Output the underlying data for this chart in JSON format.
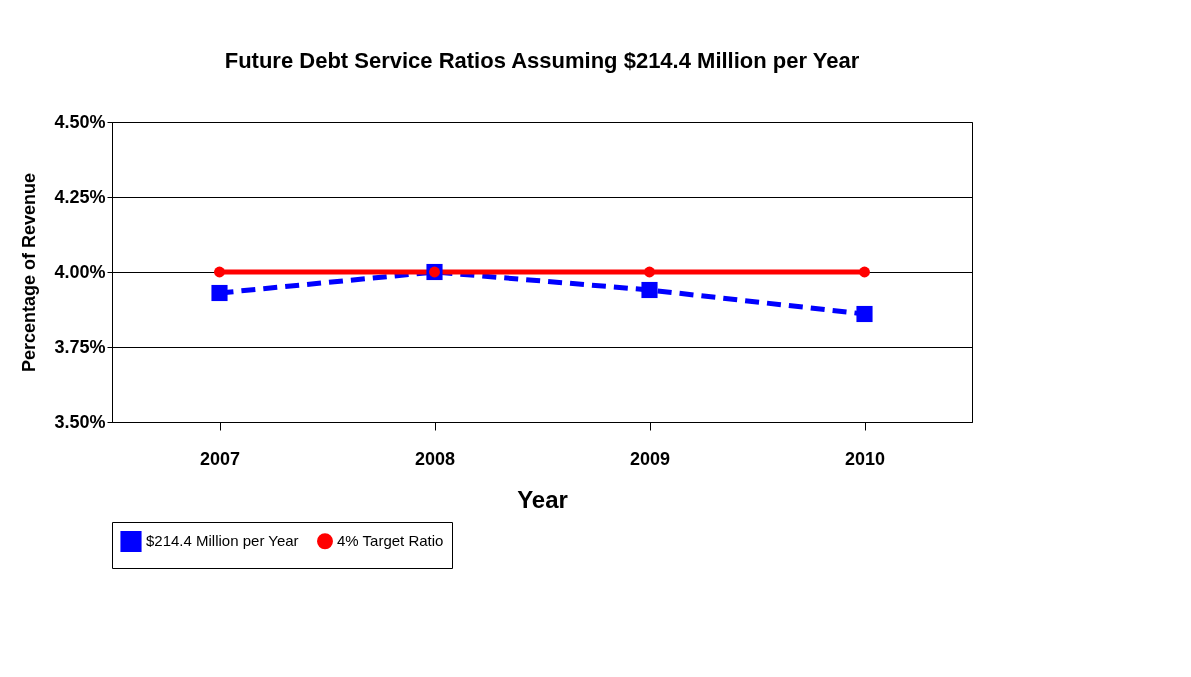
{
  "chart_data": {
    "type": "line",
    "title": "Future Debt Service Ratios Assuming $214.4 Million per Year",
    "xlabel": "Year",
    "ylabel": "Percentage of Revenue",
    "categories": [
      "2007",
      "2008",
      "2009",
      "2010"
    ],
    "series": [
      {
        "name": "$214.4 Million per Year",
        "color": "#0000ff",
        "values": [
          3.93,
          4.0,
          3.94,
          3.86
        ],
        "marker": "square",
        "line_style": "dashed"
      },
      {
        "name": "4% Target Ratio",
        "color": "#ff0000",
        "values": [
          4.0,
          4.0,
          4.0,
          4.0
        ],
        "marker": "circle",
        "line_style": "solid"
      }
    ],
    "ylim": [
      3.5,
      4.5
    ],
    "yticks": [
      {
        "value": 3.5,
        "label": "3.50%"
      },
      {
        "value": 3.75,
        "label": "3.75%"
      },
      {
        "value": 4.0,
        "label": "4.00%"
      },
      {
        "value": 4.25,
        "label": "4.25%"
      },
      {
        "value": 4.5,
        "label": "4.50%"
      }
    ],
    "grid": "y",
    "legend": "bottom left"
  }
}
